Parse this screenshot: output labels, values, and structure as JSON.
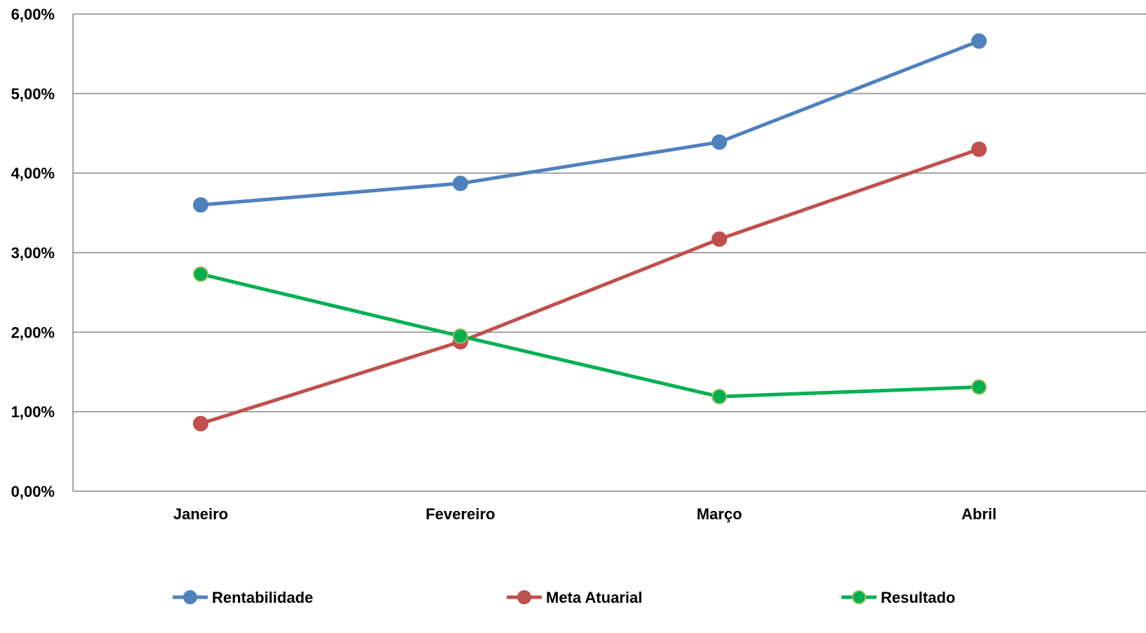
{
  "chart_data": {
    "type": "line",
    "categories": [
      "Janeiro",
      "Fevereiro",
      "Março",
      "Abril"
    ],
    "ylim": [
      0,
      6
    ],
    "y_ticks": [
      0,
      1,
      2,
      3,
      4,
      5,
      6
    ],
    "y_tick_labels": [
      "0,00%",
      "1,00%",
      "2,00%",
      "3,00%",
      "4,00%",
      "5,00%",
      "6,00%"
    ],
    "grid": true,
    "legend_position": "bottom",
    "series": [
      {
        "name": "Rentabilidade",
        "values": [
          3.6,
          3.87,
          4.39,
          5.66
        ],
        "color": "#4F81BD",
        "marker_edge": "#4F81BD"
      },
      {
        "name": "Meta Atuarial",
        "values": [
          0.85,
          1.88,
          3.17,
          4.3
        ],
        "color": "#C0504D",
        "marker_edge": "#C0504D"
      },
      {
        "name": "Resultado",
        "values": [
          2.73,
          1.95,
          1.19,
          1.31
        ],
        "color": "#00B050",
        "marker_edge": "#9BBB59"
      }
    ]
  }
}
